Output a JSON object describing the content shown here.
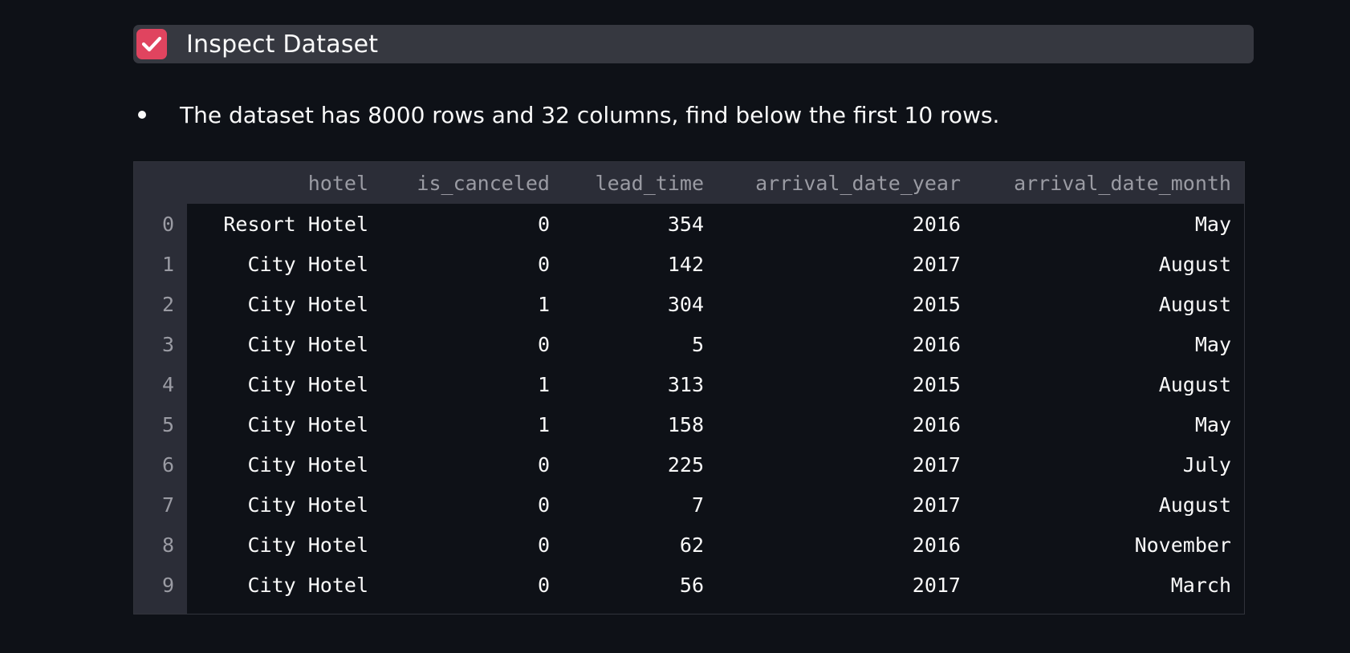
{
  "expander": {
    "title": "Inspect Dataset",
    "checked": true,
    "accent_color": "#e0445f"
  },
  "summary": {
    "text": "The dataset has 8000 rows and 32 columns, find below the first 10 rows."
  },
  "table": {
    "columns": [
      "",
      "hotel",
      "is_canceled",
      "lead_time",
      "arrival_date_year",
      "arrival_date_month"
    ],
    "rows": [
      [
        "0",
        "Resort Hotel",
        "0",
        "354",
        "2016",
        "May"
      ],
      [
        "1",
        "City Hotel",
        "0",
        "142",
        "2017",
        "August"
      ],
      [
        "2",
        "City Hotel",
        "1",
        "304",
        "2015",
        "August"
      ],
      [
        "3",
        "City Hotel",
        "0",
        "5",
        "2016",
        "May"
      ],
      [
        "4",
        "City Hotel",
        "1",
        "313",
        "2015",
        "August"
      ],
      [
        "5",
        "City Hotel",
        "1",
        "158",
        "2016",
        "May"
      ],
      [
        "6",
        "City Hotel",
        "0",
        "225",
        "2017",
        "July"
      ],
      [
        "7",
        "City Hotel",
        "0",
        "7",
        "2017",
        "August"
      ],
      [
        "8",
        "City Hotel",
        "0",
        "62",
        "2016",
        "November"
      ],
      [
        "9",
        "City Hotel",
        "0",
        "56",
        "2017",
        "March"
      ]
    ]
  }
}
